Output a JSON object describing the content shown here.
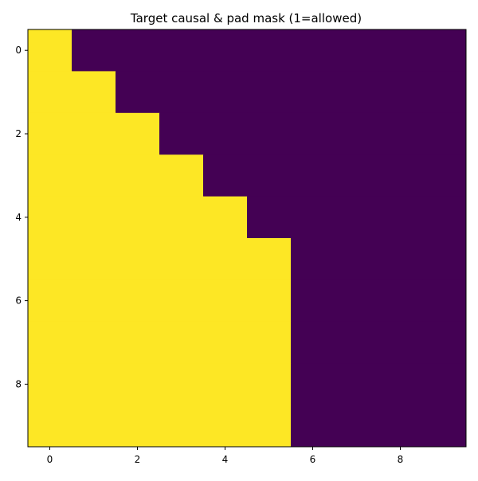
{
  "chart_data": {
    "type": "heatmap",
    "title": "Target causal & pad mask (1=allowed)",
    "xlabel": "",
    "ylabel": "",
    "x_ticks": [
      0,
      2,
      4,
      6,
      8
    ],
    "y_ticks": [
      0,
      2,
      4,
      6,
      8
    ],
    "xlim": [
      -0.5,
      9.5
    ],
    "ylim": [
      9.5,
      -0.5
    ],
    "colormap": "viridis",
    "colors": {
      "0": "#440154",
      "1": "#fde725"
    },
    "grid": false,
    "values": [
      [
        1,
        0,
        0,
        0,
        0,
        0,
        0,
        0,
        0,
        0
      ],
      [
        1,
        1,
        0,
        0,
        0,
        0,
        0,
        0,
        0,
        0
      ],
      [
        1,
        1,
        1,
        0,
        0,
        0,
        0,
        0,
        0,
        0
      ],
      [
        1,
        1,
        1,
        1,
        0,
        0,
        0,
        0,
        0,
        0
      ],
      [
        1,
        1,
        1,
        1,
        1,
        0,
        0,
        0,
        0,
        0
      ],
      [
        1,
        1,
        1,
        1,
        1,
        1,
        0,
        0,
        0,
        0
      ],
      [
        1,
        1,
        1,
        1,
        1,
        1,
        0,
        0,
        0,
        0
      ],
      [
        1,
        1,
        1,
        1,
        1,
        1,
        0,
        0,
        0,
        0
      ],
      [
        1,
        1,
        1,
        1,
        1,
        1,
        0,
        0,
        0,
        0
      ],
      [
        1,
        1,
        1,
        1,
        1,
        1,
        0,
        0,
        0,
        0
      ]
    ]
  }
}
